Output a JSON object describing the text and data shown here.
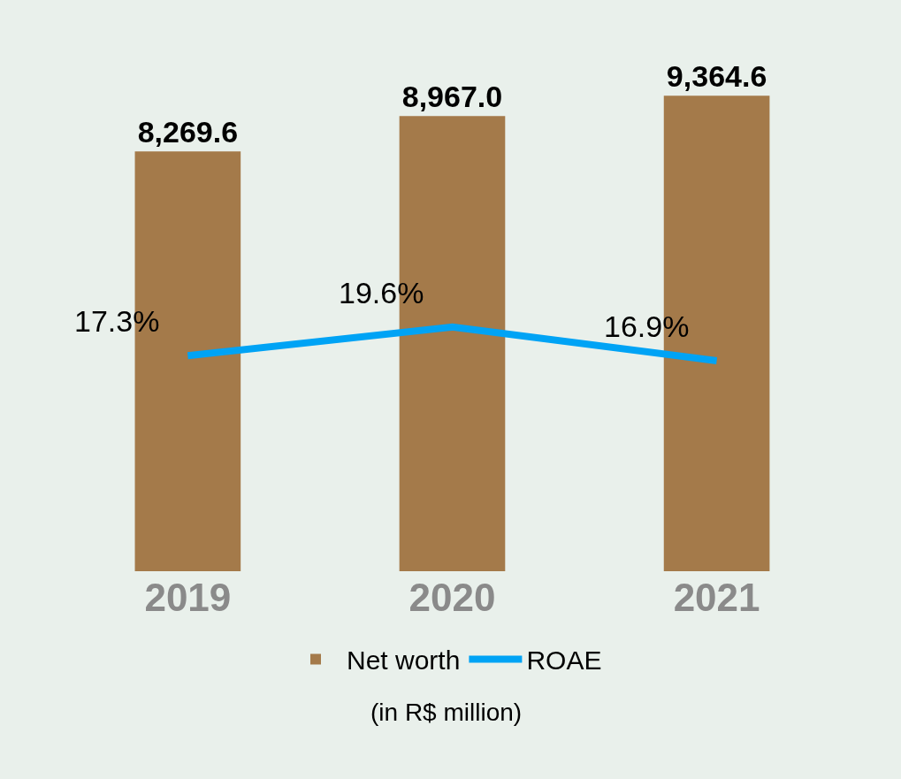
{
  "chart_data": {
    "type": "bar",
    "categories": [
      "2019",
      "2020",
      "2021"
    ],
    "series": [
      {
        "name": "Net worth",
        "color": "#a47a4a",
        "values": [
          8269.6,
          8967.0,
          9364.6
        ],
        "value_labels": [
          "8,269.6",
          "8,967.0",
          "9,364.6"
        ]
      },
      {
        "name": "ROAE",
        "type": "line",
        "axis": "y2",
        "color": "#00a3f5",
        "values": [
          17.3,
          19.6,
          16.9
        ],
        "value_labels": [
          "17.3%",
          "19.6%",
          "16.9%"
        ],
        "marker": "none",
        "line_style": "solid"
      }
    ],
    "annotations": [
      "(in R$ million)"
    ],
    "legend": "bottom",
    "grid": false,
    "tick_labels": "x"
  }
}
